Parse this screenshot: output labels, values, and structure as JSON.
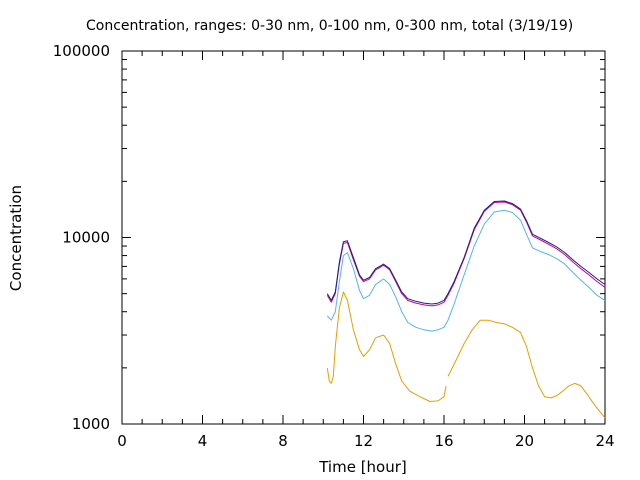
{
  "chart_data": {
    "type": "line",
    "title": "Concentration, ranges: 0-30 nm, 0-100 nm, 0-300 nm, total (3/19/19)",
    "xlabel": "Time [hour]",
    "ylabel": "Concentration",
    "xlim": [
      0,
      24
    ],
    "ylim": [
      1000,
      100000
    ],
    "yscale": "log",
    "x_ticks": [
      "0",
      "4",
      "8",
      "12",
      "16",
      "20",
      "24"
    ],
    "y_ticks": [
      "1000",
      "10000",
      "100000"
    ],
    "grid": false,
    "legend": "none",
    "series": [
      {
        "color": "#e69f00",
        "segments": [
          {
            "x": [
              10.2,
              10.3,
              10.4,
              10.5,
              10.6,
              10.8,
              11.0,
              11.2,
              11.5,
              11.8,
              12.0,
              12.3,
              12.6,
              13.0,
              13.3,
              13.6,
              13.9,
              14.3,
              14.8,
              15.3,
              15.7,
              16.0,
              16.1
            ],
            "y": [
              2000,
              1700,
              1650,
              1800,
              2600,
              4200,
              5100,
              4600,
              3200,
              2500,
              2300,
              2500,
              2900,
              3000,
              2700,
              2100,
              1700,
              1500,
              1400,
              1320,
              1330,
              1400,
              1600
            ]
          },
          {
            "x": [
              16.2,
              16.6,
              17.0,
              17.4,
              17.8,
              18.2,
              18.6,
              19.0,
              19.4,
              19.8,
              20.1,
              20.4,
              20.7,
              21.0,
              21.3,
              21.6,
              21.9,
              22.2,
              22.5,
              22.8,
              23.1,
              23.4,
              23.7,
              24.0
            ],
            "y": [
              1800,
              2200,
              2700,
              3200,
              3600,
              3600,
              3500,
              3450,
              3300,
              3100,
              2600,
              2000,
              1600,
              1400,
              1380,
              1420,
              1500,
              1600,
              1650,
              1600,
              1450,
              1300,
              1180,
              1080
            ]
          }
        ]
      },
      {
        "color": "#56b4e9",
        "segments": [
          {
            "x": [
              10.2,
              10.4,
              10.6,
              10.8,
              11.0,
              11.2,
              11.5,
              11.8,
              12.0,
              12.3,
              12.6,
              13.0,
              13.3,
              13.6,
              13.9,
              14.2,
              14.6,
              15.0,
              15.4,
              15.7,
              16.0,
              16.2,
              16.5,
              17.0,
              17.5,
              18.0,
              18.5,
              19.0,
              19.4,
              19.8,
              20.1,
              20.4,
              20.8,
              21.2,
              21.6,
              22.0,
              22.4,
              22.8,
              23.2,
              23.6,
              24.0
            ],
            "y": [
              3800,
              3600,
              4000,
              5800,
              8000,
              8300,
              6800,
              5200,
              4700,
              4900,
              5600,
              6000,
              5600,
              4800,
              4000,
              3500,
              3300,
              3200,
              3150,
              3200,
              3300,
              3600,
              4400,
              6300,
              9000,
              11800,
              13700,
              14000,
              13600,
              12400,
              10400,
              8800,
              8400,
              8100,
              7700,
              7200,
              6500,
              5900,
              5400,
              4900,
              4600
            ]
          }
        ]
      },
      {
        "color": "#cc0099",
        "segments": [
          {
            "x": [
              10.2,
              10.4,
              10.6,
              10.8,
              11.0,
              11.2,
              11.5,
              11.8,
              12.0,
              12.3,
              12.6,
              13.0,
              13.3,
              13.6,
              13.9,
              14.2,
              14.6,
              15.0,
              15.4,
              15.7,
              16.0,
              16.2,
              16.5,
              17.0,
              17.5,
              18.0,
              18.5,
              19.0,
              19.4,
              19.8,
              20.1,
              20.4,
              20.8,
              21.2,
              21.6,
              22.0,
              22.4,
              22.8,
              23.2,
              23.6,
              24.0
            ],
            "y": [
              4900,
              4500,
              5000,
              7200,
              9300,
              9400,
              7600,
              6200,
              5800,
              6000,
              6700,
              7100,
              6700,
              5800,
              5000,
              4600,
              4450,
              4350,
              4300,
              4350,
              4500,
              4900,
              5700,
              7700,
              11000,
              13800,
              15400,
              15500,
              15000,
              14000,
              12100,
              10200,
              9700,
              9200,
              8700,
              8100,
              7400,
              6800,
              6300,
              5800,
              5400
            ]
          }
        ]
      },
      {
        "color": "#1a237e",
        "segments": [
          {
            "x": [
              10.2,
              10.4,
              10.6,
              10.8,
              11.0,
              11.2,
              11.5,
              11.8,
              12.0,
              12.3,
              12.6,
              13.0,
              13.3,
              13.6,
              13.9,
              14.2,
              14.6,
              15.0,
              15.4,
              15.7,
              16.0,
              16.2,
              16.5,
              17.0,
              17.5,
              18.0,
              18.5,
              19.0,
              19.4,
              19.8,
              20.1,
              20.4,
              20.8,
              21.2,
              21.6,
              22.0,
              22.4,
              22.8,
              23.2,
              23.6,
              24.0
            ],
            "y": [
              5000,
              4600,
              5100,
              7400,
              9500,
              9600,
              7800,
              6300,
              5900,
              6100,
              6800,
              7200,
              6800,
              5900,
              5100,
              4700,
              4550,
              4450,
              4400,
              4450,
              4600,
              5000,
              5800,
              7800,
              11200,
              14000,
              15600,
              15700,
              15200,
              14200,
              12300,
              10400,
              9900,
              9400,
              8900,
              8300,
              7600,
              7000,
              6500,
              6000,
              5600
            ]
          }
        ]
      }
    ]
  }
}
